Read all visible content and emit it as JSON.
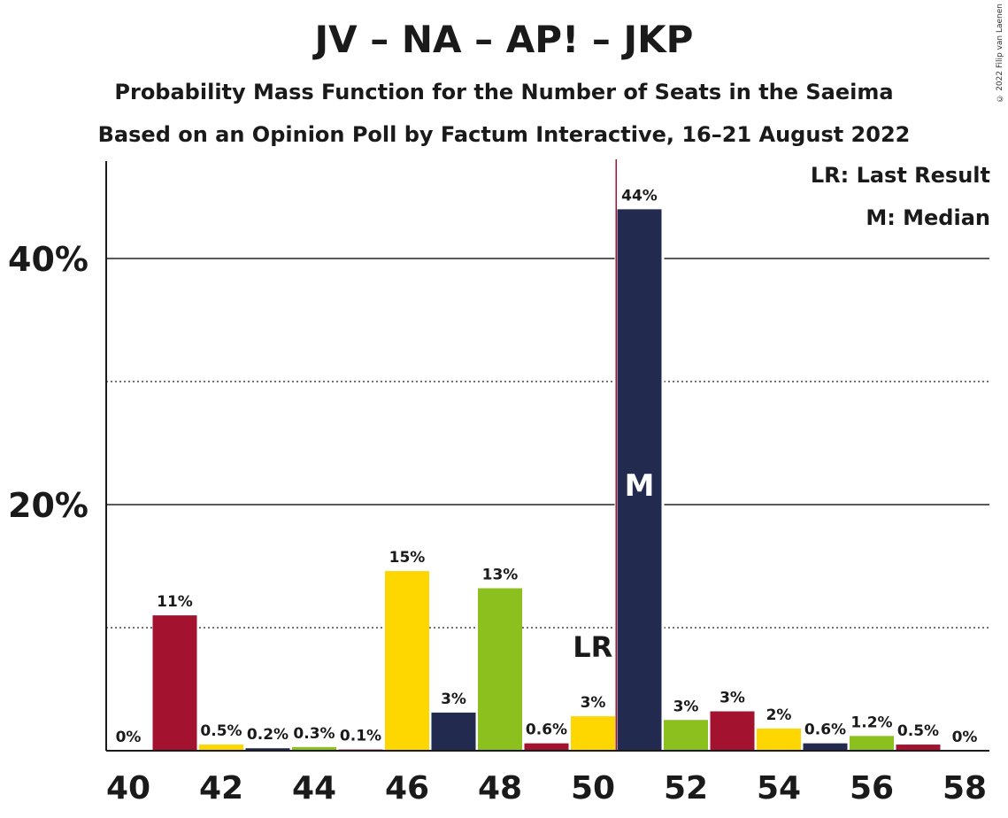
{
  "chart_data": {
    "type": "bar",
    "title": "JV – NA – AP! – JKP",
    "subtitle_1": "Probability Mass Function for the Number of Seats in the Saeima",
    "subtitle_2": "Based on an Opinion Poll by Factum Interactive, 16–21 August 2022",
    "copyright": "© 2022 Filip van Laenen",
    "legend": {
      "last_result": "LR: Last Result",
      "median": "M: Median"
    },
    "last_result_label": "LR",
    "median_label": "M",
    "last_result_seat": 51,
    "median_seat": 51,
    "ylim": [
      0,
      48
    ],
    "y_ticks": [
      {
        "value": 20,
        "label": "20%"
      },
      {
        "value": 40,
        "label": "40%"
      }
    ],
    "dotted_gridlines": [
      10,
      30
    ],
    "x_ticks": [
      40,
      42,
      44,
      46,
      48,
      50,
      52,
      54,
      56,
      58
    ],
    "x_tick_labels": [
      "40",
      "42",
      "44",
      "46",
      "48",
      "50",
      "52",
      "54",
      "56",
      "58"
    ],
    "bars": [
      {
        "seats": 40,
        "value": 0,
        "label": "0%",
        "color": "#A3132F"
      },
      {
        "seats": 41,
        "value": 11,
        "label": "11%",
        "color": "#A3132F"
      },
      {
        "seats": 42,
        "value": 0.5,
        "label": "0.5%",
        "color": "#FFD700"
      },
      {
        "seats": 43,
        "value": 0.2,
        "label": "0.2%",
        "color": "#222A50"
      },
      {
        "seats": 44,
        "value": 0.3,
        "label": "0.3%",
        "color": "#8BC01E"
      },
      {
        "seats": 45,
        "value": 0.1,
        "label": "0.1%",
        "color": "#A3132F"
      },
      {
        "seats": 46,
        "value": 14.6,
        "label": "15%",
        "color": "#FFD700"
      },
      {
        "seats": 47,
        "value": 3.1,
        "label": "3%",
        "color": "#222A50"
      },
      {
        "seats": 48,
        "value": 13.2,
        "label": "13%",
        "color": "#8BC01E"
      },
      {
        "seats": 49,
        "value": 0.6,
        "label": "0.6%",
        "color": "#A3132F"
      },
      {
        "seats": 50,
        "value": 2.8,
        "label": "3%",
        "color": "#FFD700"
      },
      {
        "seats": 51,
        "value": 44,
        "label": "44%",
        "color": "#222A50"
      },
      {
        "seats": 52,
        "value": 2.5,
        "label": "3%",
        "color": "#8BC01E"
      },
      {
        "seats": 53,
        "value": 3.2,
        "label": "3%",
        "color": "#A3132F"
      },
      {
        "seats": 54,
        "value": 1.8,
        "label": "2%",
        "color": "#FFD700"
      },
      {
        "seats": 55,
        "value": 0.6,
        "label": "0.6%",
        "color": "#222A50"
      },
      {
        "seats": 56,
        "value": 1.2,
        "label": "1.2%",
        "color": "#8BC01E"
      },
      {
        "seats": 57,
        "value": 0.5,
        "label": "0.5%",
        "color": "#A3132F"
      },
      {
        "seats": 58,
        "value": 0,
        "label": "0%",
        "color": "#FFD700"
      }
    ],
    "lr_line_color": "#A3132F"
  }
}
